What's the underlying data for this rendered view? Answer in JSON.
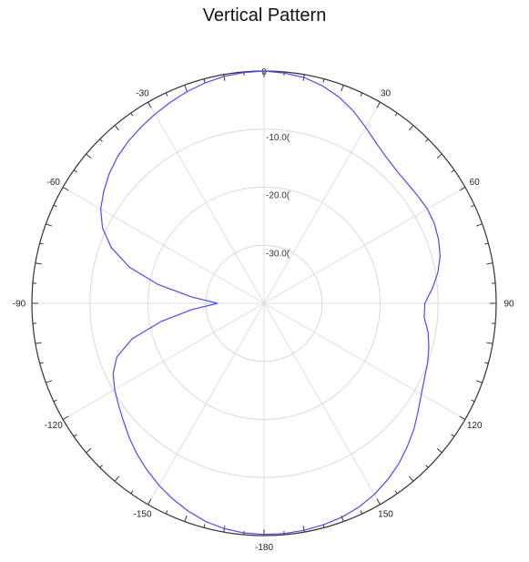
{
  "chart_data": {
    "type": "polar",
    "title": "Vertical Pattern",
    "angle_unit": "degrees",
    "angle_ticks": [
      {
        "angle": 0,
        "label": "0"
      },
      {
        "angle": 30,
        "label": "30"
      },
      {
        "angle": 60,
        "label": "60"
      },
      {
        "angle": 90,
        "label": "90"
      },
      {
        "angle": 120,
        "label": "120"
      },
      {
        "angle": 150,
        "label": "150"
      },
      {
        "angle": 180,
        "label": "-180"
      },
      {
        "angle": -150,
        "label": "-150"
      },
      {
        "angle": -120,
        "label": "-120"
      },
      {
        "angle": -90,
        "label": "-90"
      },
      {
        "angle": -60,
        "label": "-60"
      },
      {
        "angle": -30,
        "label": "-30"
      }
    ],
    "radial_ticks": [
      {
        "value": -10,
        "label": "-10.0("
      },
      {
        "value": -20,
        "label": "-20.0("
      },
      {
        "value": -30,
        "label": "-30.0("
      }
    ],
    "rlim": [
      -40,
      0
    ],
    "grid": true,
    "series": [
      {
        "color": "#4a4aff",
        "theta": [
          0,
          5,
          10,
          15,
          20,
          25,
          30,
          35,
          40,
          45,
          50,
          55,
          60,
          65,
          70,
          75,
          80,
          85,
          90,
          95,
          100,
          105,
          110,
          115,
          120,
          125,
          130,
          135,
          140,
          145,
          150,
          155,
          160,
          165,
          170,
          175,
          180,
          -175,
          -170,
          -165,
          -160,
          -155,
          -150,
          -145,
          -140,
          -135,
          -130,
          -125,
          -120,
          -115,
          -110,
          -105,
          -100,
          -95,
          -90,
          -85,
          -80,
          -75,
          -70,
          -65,
          -60,
          -55,
          -50,
          -45,
          -40,
          -35,
          -30,
          -25,
          -20,
          -15,
          -10,
          -5
        ],
        "r": [
          0,
          -0.2,
          -0.5,
          -1.2,
          -2.2,
          -3.5,
          -5,
          -6.3,
          -7.2,
          -7.7,
          -7.8,
          -7.7,
          -7.5,
          -7.6,
          -8.0,
          -8.6,
          -9.6,
          -10.9,
          -12.3,
          -12.3,
          -11.3,
          -10.6,
          -10.0,
          -9.5,
          -8.7,
          -7.6,
          -6.3,
          -5.1,
          -3.9,
          -2.9,
          -2.0,
          -1.3,
          -0.8,
          -0.5,
          -0.3,
          -0.2,
          -0.2,
          -0.3,
          -0.6,
          -1.1,
          -1.9,
          -2.8,
          -3.8,
          -4.9,
          -6.0,
          -7.2,
          -8.4,
          -9.4,
          -10.3,
          -11.3,
          -13.0,
          -16.5,
          -22.0,
          -27.5,
          -32.0,
          -27.5,
          -21.5,
          -16.0,
          -12.0,
          -9.3,
          -7.5,
          -6.3,
          -5.2,
          -4.3,
          -3.6,
          -3.0,
          -2.4,
          -1.8,
          -1.2,
          -0.7,
          -0.3,
          -0.1
        ]
      }
    ]
  }
}
